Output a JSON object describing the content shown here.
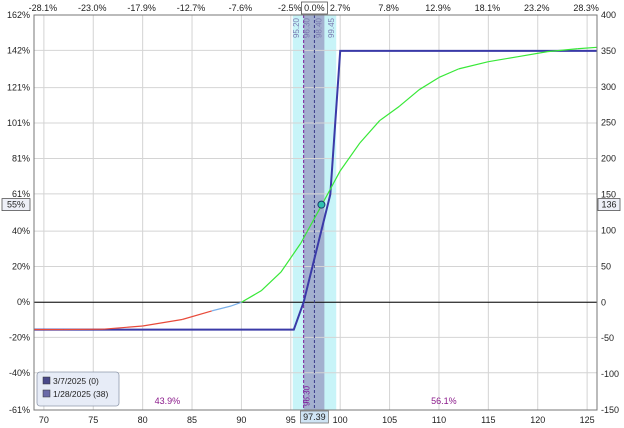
{
  "chart_data": {
    "type": "line",
    "x_axis": {
      "ticks": [
        70,
        75,
        80,
        85,
        90,
        95,
        100,
        105,
        110,
        115,
        120,
        125
      ],
      "tick_labels": [
        "70",
        "75",
        "80",
        "85",
        "90",
        "95",
        "100",
        "105",
        "110",
        "115",
        "120",
        "125"
      ],
      "range": [
        69,
        126
      ],
      "current_price_label": "97.39"
    },
    "top_axis": {
      "tick_labels": [
        "-28.1%",
        "-23.0%",
        "-17.9%",
        "-12.7%",
        "-7.6%",
        "-2.5%",
        "0.0%",
        "2.7%",
        "7.8%",
        "12.9%",
        "18.1%",
        "23.2%",
        "28.3%"
      ],
      "tick_x": [
        69.9,
        74.9,
        79.9,
        84.9,
        89.9,
        94.9,
        97.39,
        100.0,
        104.9,
        109.9,
        114.9,
        119.9,
        124.9
      ]
    },
    "left_axis": {
      "ticks": [
        162,
        142,
        121,
        101,
        81,
        61,
        40,
        20,
        0,
        -20,
        -40,
        -61
      ],
      "tick_labels": [
        "162%",
        "142%",
        "121%",
        "101%",
        "81%",
        "61%",
        "40%",
        "20%",
        "0%",
        "-20%",
        "-40%",
        "-61%"
      ],
      "range": [
        -61,
        162
      ],
      "marker_label": "55%"
    },
    "right_axis": {
      "ticks": [
        400,
        350,
        300,
        250,
        200,
        150,
        100,
        50,
        0,
        -50,
        -100,
        -150
      ],
      "tick_labels": [
        "400",
        "350",
        "300",
        "250",
        "200",
        "150",
        "100",
        "50",
        "0",
        "-50",
        "-100",
        "-150"
      ],
      "range": [
        -150,
        400
      ],
      "marker_label": "136"
    },
    "series": [
      {
        "name": "3/7/2025 (0)",
        "color": "#3a3aa8",
        "points": [
          [
            69,
            -38
          ],
          [
            95.3,
            -38
          ],
          [
            96.3,
            0
          ],
          [
            99.0,
            150
          ],
          [
            100.0,
            350
          ],
          [
            126,
            350
          ]
        ]
      },
      {
        "name": "1/28/2025 (38)",
        "color_segments": {
          "loss": "#e84a3a",
          "near_zero": "#7ab0ea",
          "profit": "#38e838"
        },
        "points": [
          [
            69,
            -38
          ],
          [
            72,
            -38
          ],
          [
            76,
            -37.5
          ],
          [
            80,
            -33
          ],
          [
            84,
            -24
          ],
          [
            87,
            -12
          ],
          [
            89,
            -5
          ],
          [
            90,
            0
          ],
          [
            92,
            16
          ],
          [
            94,
            42
          ],
          [
            96,
            82
          ],
          [
            98,
            132
          ],
          [
            100,
            183
          ],
          [
            102,
            222
          ],
          [
            104,
            253
          ],
          [
            106,
            273
          ],
          [
            108,
            296
          ],
          [
            110,
            313
          ],
          [
            112,
            325
          ],
          [
            115,
            335
          ],
          [
            118,
            342
          ],
          [
            121,
            349
          ],
          [
            124,
            353
          ],
          [
            126,
            355
          ]
        ]
      }
    ],
    "marker_point": [
      98.1,
      136
    ],
    "vertical_lines": [
      {
        "x": 96.3,
        "label": "96.30",
        "color": "#7a1a9a"
      },
      {
        "x": 97.39,
        "label": "",
        "color": "#3a3a8a"
      }
    ],
    "bands": [
      {
        "x_range": [
          95.2,
          99.6
        ],
        "color": "#c8f4f8",
        "labels": [
          "95.20",
          "99.45"
        ]
      },
      {
        "x_range": [
          96.3,
          98.4
        ],
        "color": "#a3b0cf",
        "labels": [
          "96.30",
          "98.40"
        ]
      }
    ],
    "probability_labels": [
      {
        "x": 82.5,
        "text": "43.9%"
      },
      {
        "x": 110.5,
        "text": "56.1%"
      }
    ],
    "legend": {
      "placement": "bottom-left",
      "items": [
        {
          "label": "3/7/2025 (0)",
          "color": "#4a4a8a"
        },
        {
          "label": "1/28/2025 (38)",
          "color": "#6a6aa8"
        }
      ]
    },
    "grid": true
  }
}
